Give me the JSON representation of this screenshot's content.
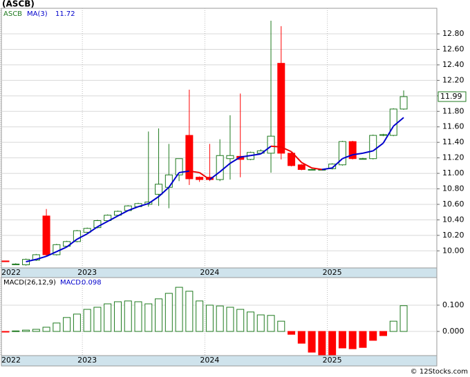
{
  "chart_data": [
    {
      "type": "candlestick",
      "title": "(ASCB)",
      "name": "ASCB",
      "categories": [
        "2022",
        null,
        null,
        null,
        null,
        null,
        null,
        null,
        "2023",
        null,
        null,
        null,
        null,
        null,
        null,
        null,
        null,
        null,
        null,
        null,
        "2024",
        null,
        null,
        null,
        null,
        null,
        null,
        null,
        null,
        null,
        null,
        null,
        "2025",
        null,
        null,
        null,
        null,
        null,
        null,
        null
      ],
      "open": [
        9.87,
        9.83,
        9.82,
        9.88,
        10.45,
        9.95,
        10.06,
        10.12,
        10.24,
        10.3,
        10.39,
        10.46,
        10.52,
        10.57,
        10.6,
        10.73,
        10.82,
        10.98,
        11.49,
        10.95,
        10.95,
        10.92,
        11.19,
        11.22,
        11.18,
        11.26,
        11.26,
        12.42,
        11.26,
        11.11,
        11.05,
        11.05,
        11.06,
        11.11,
        11.41,
        11.19,
        11.19,
        11.49,
        11.49,
        11.83
      ],
      "high": [
        9.87,
        9.84,
        9.9,
        9.96,
        10.54,
        10.09,
        10.13,
        10.27,
        10.3,
        10.4,
        10.47,
        10.52,
        10.59,
        10.62,
        11.54,
        11.58,
        11.38,
        11.19,
        12.08,
        10.96,
        11.38,
        11.44,
        11.75,
        12.03,
        11.28,
        11.31,
        12.97,
        12.9,
        11.27,
        11.12,
        11.06,
        11.06,
        11.13,
        11.42,
        11.42,
        11.2,
        11.5,
        11.51,
        11.84,
        12.07
      ],
      "low": [
        9.86,
        9.82,
        9.81,
        9.87,
        9.93,
        9.94,
        10.05,
        10.11,
        10.23,
        10.29,
        10.38,
        10.45,
        10.51,
        10.56,
        10.57,
        10.58,
        10.55,
        10.9,
        10.85,
        10.89,
        10.9,
        10.9,
        10.92,
        10.95,
        11.17,
        11.25,
        11.01,
        11.18,
        11.09,
        11.04,
        11.04,
        11.04,
        11.05,
        11.1,
        11.18,
        11.18,
        11.18,
        11.48,
        11.48,
        11.82
      ],
      "close": [
        9.86,
        9.83,
        9.89,
        9.95,
        9.95,
        10.08,
        10.12,
        10.26,
        10.29,
        10.39,
        10.46,
        10.51,
        10.58,
        10.61,
        10.63,
        10.86,
        10.98,
        11.19,
        10.93,
        10.92,
        10.92,
        11.23,
        11.23,
        11.18,
        11.27,
        11.29,
        11.48,
        11.26,
        11.1,
        11.05,
        11.05,
        11.05,
        11.12,
        11.41,
        11.19,
        11.19,
        11.49,
        11.5,
        11.83,
        11.99
      ],
      "up_color": "#1e7a1e",
      "down_color": "#ff0000",
      "ma": {
        "name": "MA(3)",
        "up_color": "#0000cc",
        "down_color": "#ee0000",
        "values": [
          null,
          null,
          9.86,
          9.89,
          9.93,
          9.99,
          10.05,
          10.15,
          10.22,
          10.31,
          10.38,
          10.45,
          10.52,
          10.57,
          10.61,
          10.7,
          10.82,
          11.01,
          11.03,
          11.01,
          10.92,
          11.02,
          11.13,
          11.21,
          11.23,
          11.25,
          11.35,
          11.34,
          11.28,
          11.14,
          11.07,
          11.05,
          11.07,
          11.19,
          11.24,
          11.26,
          11.29,
          11.39,
          11.61,
          11.72
        ]
      },
      "ylim": [
        9.78,
        13.13
      ],
      "yticks": [
        {
          "value": 10,
          "label": "10.00"
        },
        {
          "value": 10.2,
          "label": "10.20"
        },
        {
          "value": 10.4,
          "label": "10.40"
        },
        {
          "value": 10.6,
          "label": "10.60"
        },
        {
          "value": 10.8,
          "label": "10.80"
        },
        {
          "value": 11,
          "label": "11.00"
        },
        {
          "value": 11.2,
          "label": "11.20"
        },
        {
          "value": 11.4,
          "label": "11.40"
        },
        {
          "value": 11.6,
          "label": "11.60"
        },
        {
          "value": 11.8,
          "label": "11.80"
        },
        {
          "value": 12,
          "label": "12.00"
        },
        {
          "value": 12.2,
          "label": "12.20"
        },
        {
          "value": 12.4,
          "label": "12.40"
        },
        {
          "value": 12.6,
          "label": "12.60"
        },
        {
          "value": 12.8,
          "label": "12.80"
        }
      ],
      "grid": true
    },
    {
      "type": "bar",
      "title": "MACD(26,12,9)",
      "value_name": "MACD:",
      "categories": [
        "2022",
        null,
        null,
        null,
        null,
        null,
        null,
        null,
        "2023",
        null,
        null,
        null,
        null,
        null,
        null,
        null,
        null,
        null,
        null,
        null,
        "2024",
        null,
        null,
        null,
        null,
        null,
        null,
        null,
        null,
        null,
        null,
        null,
        "2025",
        null,
        null,
        null,
        null,
        null,
        null,
        null
      ],
      "values": [
        -0.002,
        0.002,
        0.005,
        0.008,
        0.016,
        0.032,
        0.053,
        0.066,
        0.084,
        0.092,
        0.105,
        0.113,
        0.116,
        0.113,
        0.105,
        0.124,
        0.145,
        0.168,
        0.153,
        0.116,
        0.1,
        0.097,
        0.092,
        0.084,
        0.074,
        0.063,
        0.061,
        0.039,
        -0.011,
        -0.045,
        -0.079,
        -0.089,
        -0.089,
        -0.063,
        -0.066,
        -0.061,
        -0.034,
        -0.016,
        0.039,
        0.098
      ],
      "up_color": "#1e7a1e",
      "down_color": "#ff0000",
      "ylim": [
        -0.092,
        0.205
      ],
      "yticks": [
        {
          "value": 0,
          "label": "0.000"
        },
        {
          "value": 0.1,
          "label": "0.100"
        }
      ],
      "grid": true
    }
  ],
  "watermark": "© 12Stocks.com"
}
